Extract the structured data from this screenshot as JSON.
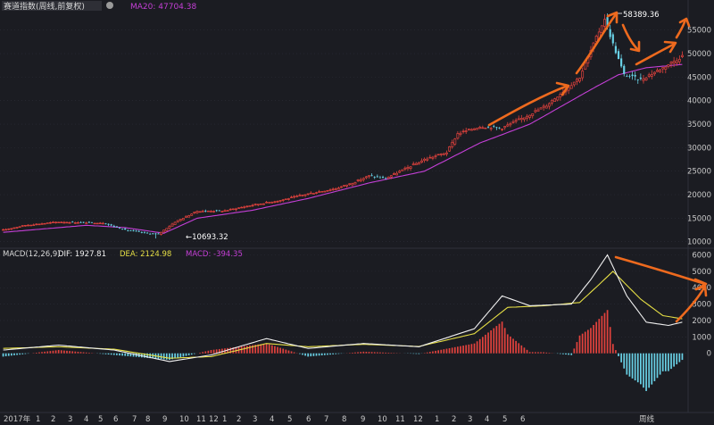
{
  "colors": {
    "background": "#1b1c22",
    "up": "#e2423d",
    "down": "#69d1e6",
    "ma20": "#c43fd6",
    "dif": "#f0f0f0",
    "dea": "#e6df45",
    "grid": "#2c2e38",
    "axis_text": "#c8c8c8",
    "annotation": "#ee6a1e"
  },
  "chart_data": [
    {
      "type": "candlestick",
      "title": "赛道指数(周线,前复权)",
      "legend": {
        "ma_label": "MA20: 47704.38"
      },
      "y_ticks": [
        10000,
        15000,
        20000,
        25000,
        30000,
        35000,
        40000,
        45000,
        50000,
        55000
      ],
      "ylim": [
        9000,
        59500
      ],
      "interval": "weekly",
      "annotations": {
        "high_label": "58389.36",
        "low_label": "←10693.32"
      },
      "anchors": [
        [
          0,
          12500
        ],
        [
          8,
          13500
        ],
        [
          20,
          14200
        ],
        [
          36,
          14000
        ],
        [
          44,
          12500
        ],
        [
          52,
          11800
        ],
        [
          56,
          11600
        ],
        [
          62,
          14200
        ],
        [
          70,
          16500
        ],
        [
          80,
          16600
        ],
        [
          90,
          17800
        ],
        [
          100,
          18800
        ],
        [
          110,
          20200
        ],
        [
          120,
          21300
        ],
        [
          126,
          22500
        ],
        [
          132,
          24000
        ],
        [
          138,
          23500
        ],
        [
          145,
          25500
        ],
        [
          152,
          27500
        ],
        [
          160,
          29000
        ],
        [
          164,
          33000
        ],
        [
          172,
          34500
        ],
        [
          180,
          34200
        ],
        [
          188,
          36500
        ],
        [
          196,
          39000
        ],
        [
          202,
          42000
        ],
        [
          208,
          45000
        ],
        [
          213,
          52000
        ],
        [
          217,
          57500
        ],
        [
          220,
          52000
        ],
        [
          224,
          45500
        ],
        [
          230,
          44500
        ],
        [
          238,
          47000
        ],
        [
          245,
          49500
        ]
      ],
      "ma20_anchors": [
        [
          0,
          12000
        ],
        [
          30,
          13500
        ],
        [
          44,
          13000
        ],
        [
          58,
          11800
        ],
        [
          70,
          15000
        ],
        [
          90,
          16700
        ],
        [
          110,
          19200
        ],
        [
          132,
          22500
        ],
        [
          152,
          25000
        ],
        [
          172,
          31000
        ],
        [
          190,
          35000
        ],
        [
          202,
          39000
        ],
        [
          214,
          43000
        ],
        [
          222,
          45500
        ],
        [
          232,
          47000
        ],
        [
          245,
          47700
        ]
      ],
      "high_index": 217,
      "low_index": 55,
      "count": 246
    },
    {
      "type": "line",
      "title": "MACD(12,26,9)",
      "legend": {
        "dif_label": "DIF: 1927.81",
        "dea_label": "DEA: 2124.98",
        "macd_label": "MACD: -394.35"
      },
      "y_ticks": [
        0,
        1000,
        2000,
        3000,
        4000,
        5000,
        6000
      ],
      "ylim": [
        -3500,
        6300
      ],
      "dif_anchors": [
        [
          0,
          200
        ],
        [
          20,
          500
        ],
        [
          40,
          200
        ],
        [
          60,
          -500
        ],
        [
          75,
          -100
        ],
        [
          95,
          900
        ],
        [
          110,
          300
        ],
        [
          130,
          600
        ],
        [
          150,
          400
        ],
        [
          170,
          1500
        ],
        [
          180,
          3500
        ],
        [
          190,
          2900
        ],
        [
          205,
          3000
        ],
        [
          212,
          4500
        ],
        [
          218,
          6000
        ],
        [
          225,
          3500
        ],
        [
          232,
          1900
        ],
        [
          240,
          1700
        ],
        [
          245,
          1900
        ]
      ],
      "dea_anchors": [
        [
          0,
          300
        ],
        [
          20,
          400
        ],
        [
          40,
          250
        ],
        [
          60,
          -300
        ],
        [
          75,
          -200
        ],
        [
          95,
          600
        ],
        [
          110,
          400
        ],
        [
          130,
          550
        ],
        [
          150,
          420
        ],
        [
          170,
          1200
        ],
        [
          182,
          2800
        ],
        [
          195,
          2900
        ],
        [
          208,
          3100
        ],
        [
          215,
          4200
        ],
        [
          220,
          5000
        ],
        [
          230,
          3300
        ],
        [
          238,
          2300
        ],
        [
          245,
          2100
        ]
      ],
      "count": 246
    }
  ],
  "x_axis": {
    "labels": [
      "2017年",
      "1",
      "2",
      "3",
      "4",
      "5",
      "6",
      "7",
      "8",
      "9",
      "10",
      "11",
      "12",
      "1",
      "2",
      "3",
      "4",
      "5",
      "6",
      "7",
      "8",
      "9",
      "10",
      "11",
      "12",
      "1",
      "2",
      "3",
      "4",
      "5",
      "6",
      "周线"
    ],
    "label_x": [
      4,
      40,
      57,
      76,
      94,
      110,
      127,
      148,
      163,
      182,
      201,
      220,
      234,
      249,
      265,
      283,
      302,
      322,
      343,
      363,
      383,
      404,
      423,
      443,
      463,
      487,
      506,
      524,
      543,
      563,
      583,
      716
    ]
  }
}
